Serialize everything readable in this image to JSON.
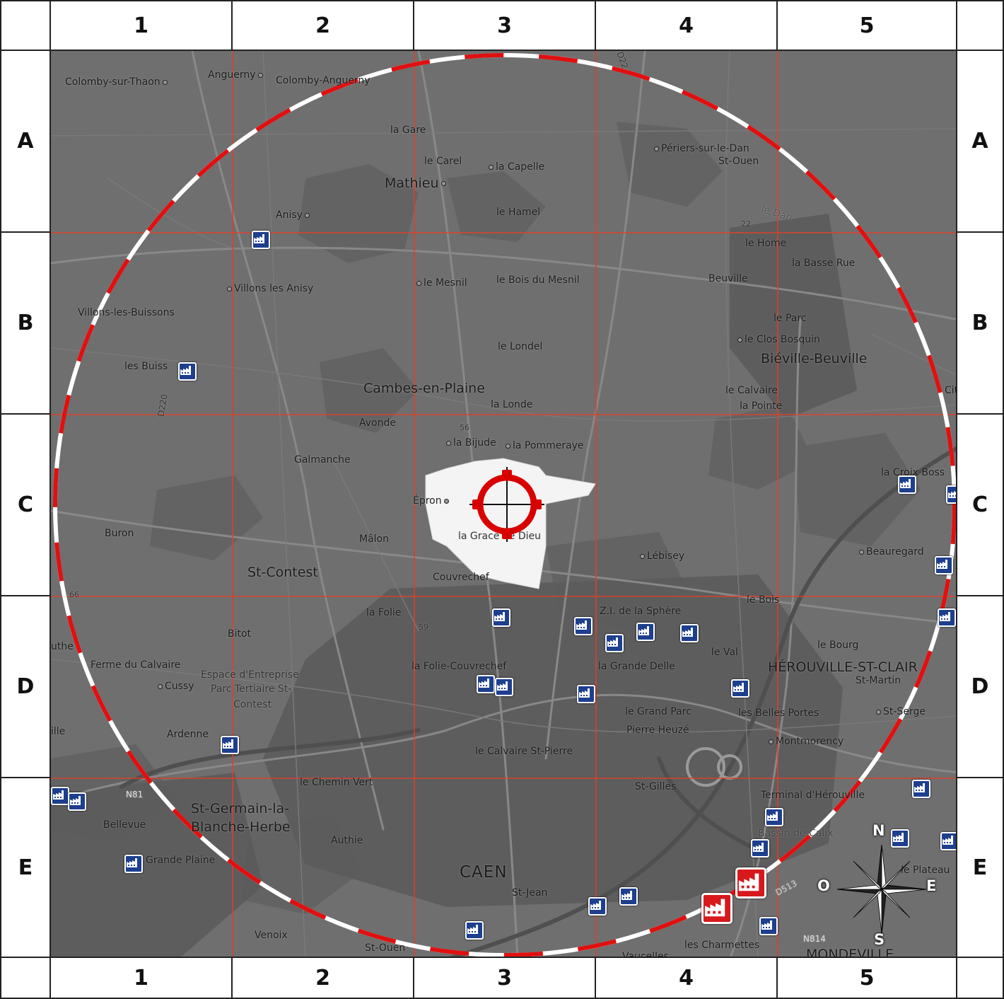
{
  "grid": {
    "columns": [
      "1",
      "2",
      "3",
      "4",
      "5"
    ],
    "rows": [
      "A",
      "B",
      "C",
      "D",
      "E"
    ]
  },
  "colors": {
    "grid_line": "#e0402a",
    "ring_red": "#e01010",
    "ring_white": "#ffffff",
    "factory_blue": "#1d3f8e",
    "factory_alert": "#d7191c",
    "target_red": "#d90000",
    "map_base": "#6f6f6f",
    "zone_fill": "#f4f4f4"
  },
  "places": [
    {
      "id": "colomby-sur-thaon",
      "label": "Colomby-sur-Thaon"
    },
    {
      "id": "anguerny",
      "label": "Anguerny"
    },
    {
      "id": "colomby-anguerny",
      "label": "Colomby-Anguerny"
    },
    {
      "id": "la-gare",
      "label": "la Gare"
    },
    {
      "id": "le-carel",
      "label": "le Carel"
    },
    {
      "id": "la-capelle",
      "label": "la Capelle"
    },
    {
      "id": "mathieu",
      "label": "Mathieu"
    },
    {
      "id": "periers",
      "label": "Périers-sur-le-Dan"
    },
    {
      "id": "st-ouen-n",
      "label": "St-Ouen"
    },
    {
      "id": "anisy",
      "label": "Anisy"
    },
    {
      "id": "le-hamel",
      "label": "le Hamel"
    },
    {
      "id": "le-dan",
      "label": "le Dan"
    },
    {
      "id": "le-home",
      "label": "le Home"
    },
    {
      "id": "la-basse-rue",
      "label": "la Basse Rue"
    },
    {
      "id": "beuville",
      "label": "Beuville"
    },
    {
      "id": "le-mesnil",
      "label": "le Mesnil"
    },
    {
      "id": "le-bois-du-mesnil",
      "label": "le Bois du Mesnil"
    },
    {
      "id": "villons-les-anisy",
      "label": "Villons les Anisy"
    },
    {
      "id": "villons-les-buissons",
      "label": "Villons-les-Buissons"
    },
    {
      "id": "le-parc",
      "label": "le Parc"
    },
    {
      "id": "le-clos-bosquin",
      "label": "le Clos Bosquin"
    },
    {
      "id": "bieville",
      "label": "Biéville-Beuville"
    },
    {
      "id": "le-londel",
      "label": "le Londel"
    },
    {
      "id": "les-buisson",
      "label": "les Buiss"
    },
    {
      "id": "cambes",
      "label": "Cambes-en-Plaine"
    },
    {
      "id": "la-londe",
      "label": "la Londe"
    },
    {
      "id": "le-calvaire",
      "label": "le Calvaire"
    },
    {
      "id": "la-pointe",
      "label": "la Pointe"
    },
    {
      "id": "avonde",
      "label": "Avonde"
    },
    {
      "id": "la-bijude",
      "label": "la Bijude"
    },
    {
      "id": "la-pommeraye",
      "label": "la Pommeraye"
    },
    {
      "id": "galmanche",
      "label": "Galmanche"
    },
    {
      "id": "la-croix-boss",
      "label": "la Croix Boss"
    },
    {
      "id": "epron",
      "label": "Épron"
    },
    {
      "id": "la-grace",
      "label": "la Grace de Dieu"
    },
    {
      "id": "buron",
      "label": "Buron"
    },
    {
      "id": "malon",
      "label": "Mâlon"
    },
    {
      "id": "lebisey",
      "label": "Lébisey"
    },
    {
      "id": "beauregard",
      "label": "Beauregard"
    },
    {
      "id": "st-contest",
      "label": "St-Contest"
    },
    {
      "id": "couvrechef",
      "label": "Couvrechef"
    },
    {
      "id": "le-bois",
      "label": "le Bois"
    },
    {
      "id": "zi-sphere",
      "label": "Z.I. de la Sphère"
    },
    {
      "id": "la-folie",
      "label": "la Folie"
    },
    {
      "id": "bitot",
      "label": "Bitot"
    },
    {
      "id": "le-bourg",
      "label": "le Bourg"
    },
    {
      "id": "le-val",
      "label": "le Val"
    },
    {
      "id": "ferme-calvaire",
      "label": "Ferme du Calvaire"
    },
    {
      "id": "espace",
      "label": "Espace d'Entreprise"
    },
    {
      "id": "parc-tertiaire",
      "label": "Parc Tertiaire St-"
    },
    {
      "id": "contest",
      "label": "Contest"
    },
    {
      "id": "folie-couvrechef",
      "label": "la Folie-Couvrechef"
    },
    {
      "id": "grande-delle",
      "label": "la Grande Delle"
    },
    {
      "id": "herouville",
      "label": "HÉROUVILLE-ST-CLAIR"
    },
    {
      "id": "st-martin",
      "label": "St-Martin"
    },
    {
      "id": "cussy",
      "label": "Cussy"
    },
    {
      "id": "le-grand-parc",
      "label": "le Grand Parc"
    },
    {
      "id": "pierre-heuze",
      "label": "Pierre Heuzé"
    },
    {
      "id": "les-belles-portes",
      "label": "les Belles Portes"
    },
    {
      "id": "st-serge",
      "label": "St-Serge"
    },
    {
      "id": "ardenne",
      "label": "Ardenne"
    },
    {
      "id": "montmorency",
      "label": "Montmorency"
    },
    {
      "id": "calvaire-st-pierre",
      "label": "le Calvaire St-Pierre"
    },
    {
      "id": "chemin-vert",
      "label": "le Chemin Vert"
    },
    {
      "id": "st-gilles",
      "label": "St-Gilles"
    },
    {
      "id": "terminal",
      "label": "Terminal d'Hérouville"
    },
    {
      "id": "st-germain",
      "label": "St-Germain-la-"
    },
    {
      "id": "blanche-herbe",
      "label": "Blanche-Herbe"
    },
    {
      "id": "bellevue",
      "label": "Bellevue"
    },
    {
      "id": "authie",
      "label": "Authie"
    },
    {
      "id": "bassin-calix",
      "label": "Bassin de Calix"
    },
    {
      "id": "grande-plaine",
      "label": "Grande Plaine"
    },
    {
      "id": "le-plateau",
      "label": "le Plateau"
    },
    {
      "id": "caen",
      "label": "CAEN"
    },
    {
      "id": "st-jean",
      "label": "St-Jean"
    },
    {
      "id": "venoix",
      "label": "Venoix"
    },
    {
      "id": "st-ouen-s",
      "label": "St-Ouen"
    },
    {
      "id": "les-charmettes",
      "label": "les Charmettes"
    },
    {
      "id": "vaucelles",
      "label": "Vaucelles"
    },
    {
      "id": "mondeville",
      "label": "MONDEVILLE"
    },
    {
      "id": "cit",
      "label": "Cit"
    },
    {
      "id": "uthe",
      "label": "uthe"
    },
    {
      "id": "ille",
      "label": "ille"
    }
  ],
  "roads": [
    {
      "id": "d220",
      "label": "D220"
    },
    {
      "id": "n814",
      "label": "N814"
    },
    {
      "id": "n81",
      "label": "N81"
    },
    {
      "id": "d513",
      "label": "D513"
    },
    {
      "id": "d22",
      "label": "22"
    },
    {
      "id": "d22n",
      "label": "D22"
    },
    {
      "id": "alt56",
      "label": "56"
    },
    {
      "id": "alt59",
      "label": "59"
    },
    {
      "id": "alt66",
      "label": "66"
    }
  ],
  "compass": {
    "north": "N",
    "south": "S",
    "east": "E",
    "west": "O"
  },
  "target": {
    "name": "target-crosshair",
    "zone": "Épron"
  }
}
